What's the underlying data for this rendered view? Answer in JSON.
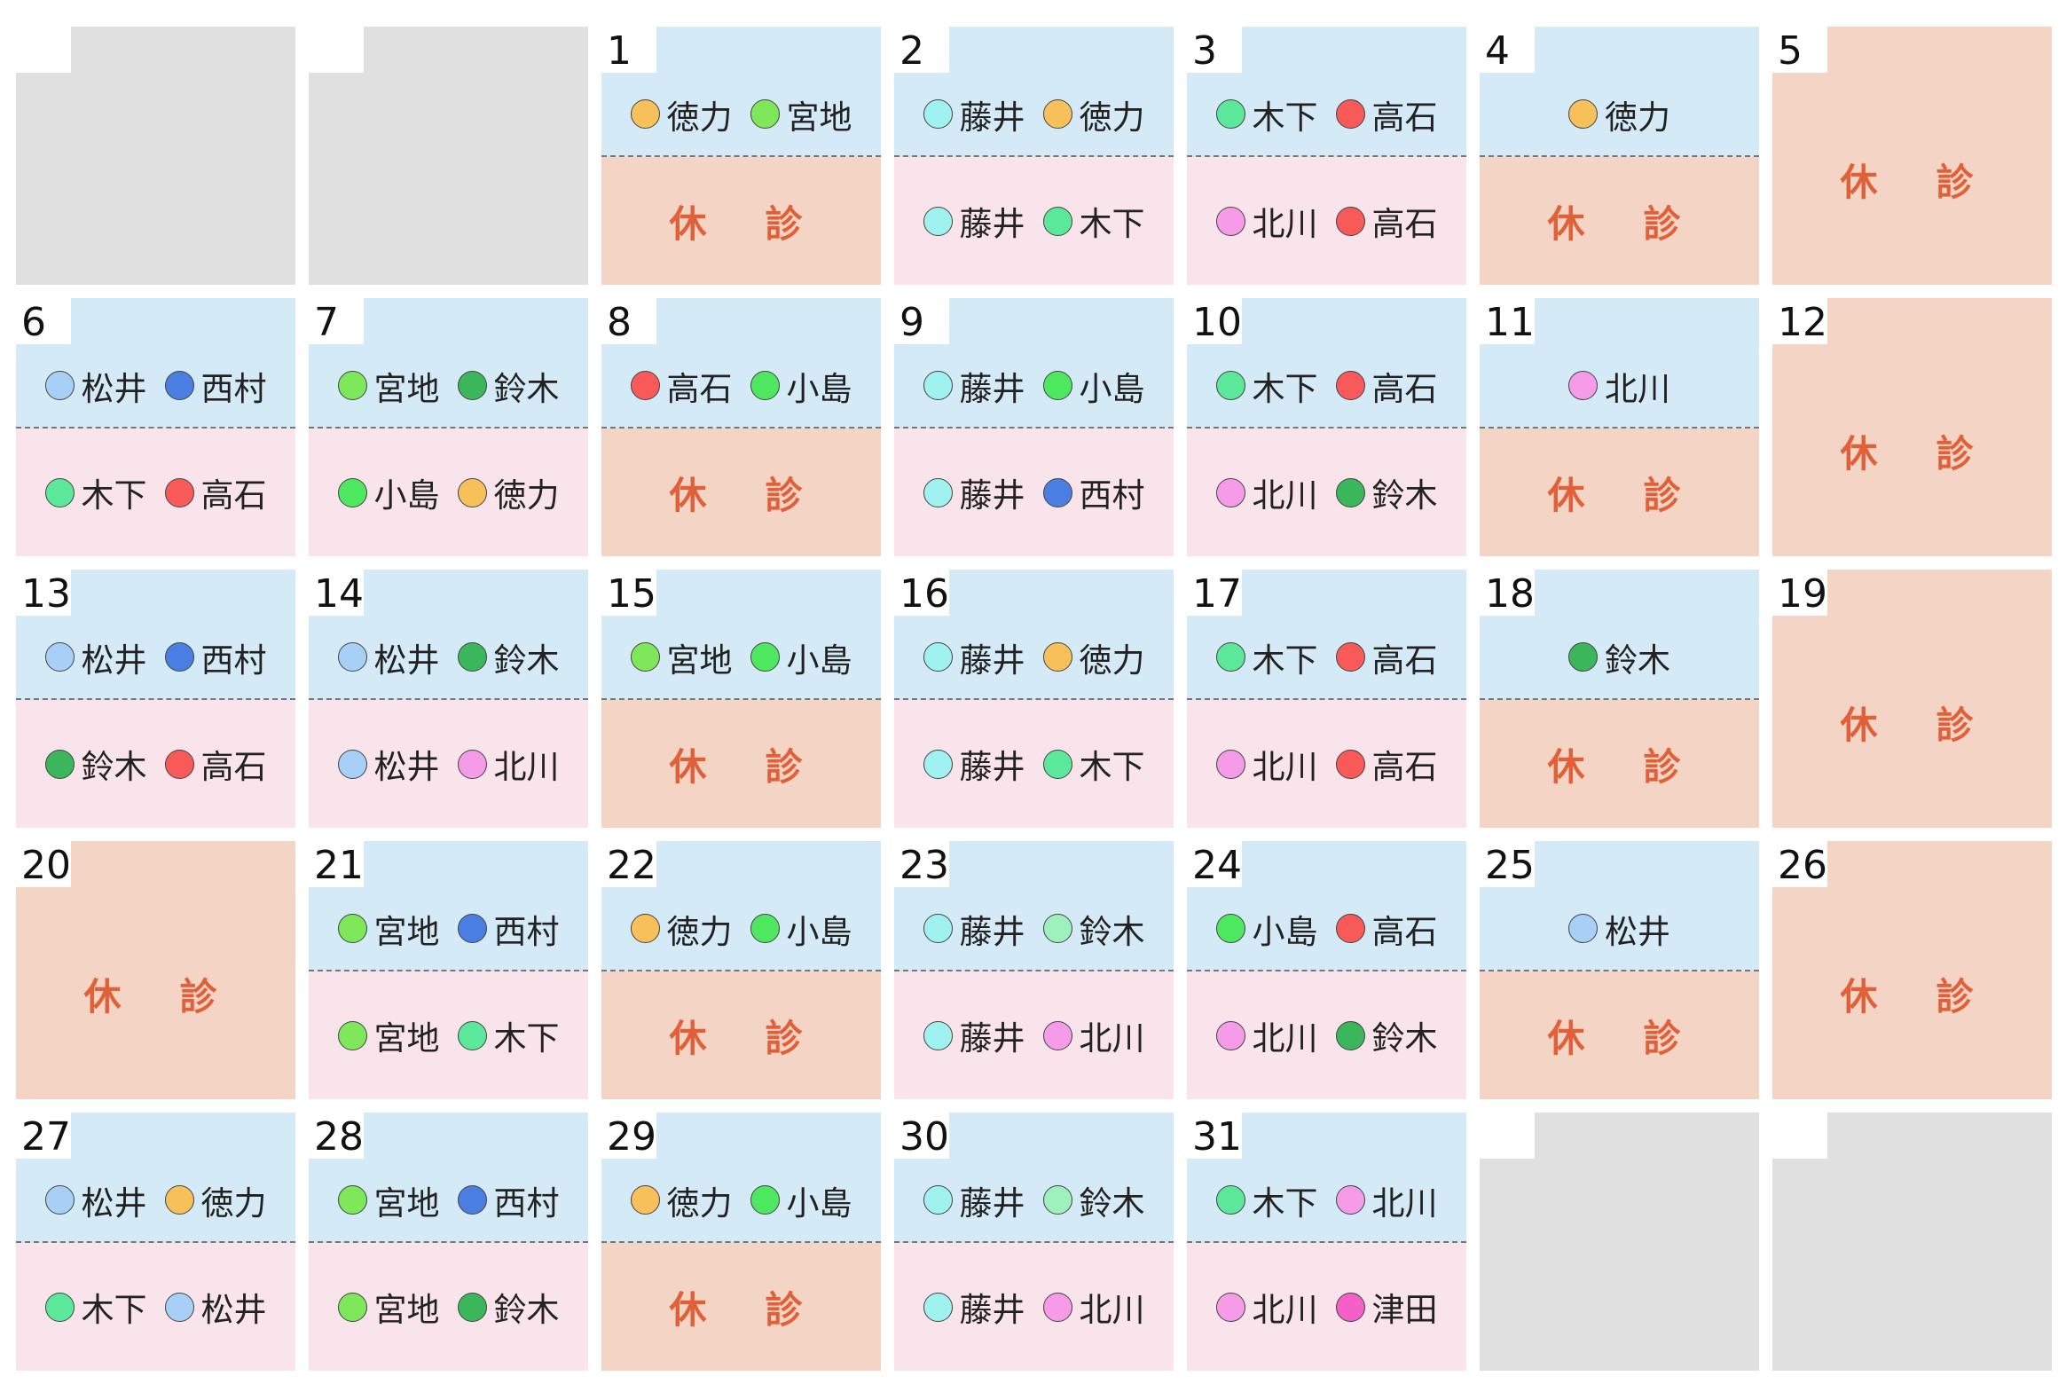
{
  "calendar": {
    "closed_text": "休　診",
    "weeks": [
      [
        null,
        null,
        {
          "day": "1",
          "am": [
            {
              "name": "徳力",
              "color": "#f7c05a"
            },
            {
              "name": "宮地",
              "color": "#7ee85a"
            }
          ],
          "pm_closed": true
        },
        {
          "day": "2",
          "am": [
            {
              "name": "藤井",
              "color": "#a0f2f0"
            },
            {
              "name": "徳力",
              "color": "#f7c05a"
            }
          ],
          "pm": [
            {
              "name": "藤井",
              "color": "#a0f2f0"
            },
            {
              "name": "木下",
              "color": "#5ce89a"
            }
          ]
        },
        {
          "day": "3",
          "am": [
            {
              "name": "木下",
              "color": "#5ce89a"
            },
            {
              "name": "高石",
              "color": "#f85a5a"
            }
          ],
          "pm": [
            {
              "name": "北川",
              "color": "#f59be8"
            },
            {
              "name": "高石",
              "color": "#f85a5a"
            }
          ]
        },
        {
          "day": "4",
          "am": [
            {
              "name": "徳力",
              "color": "#f7c05a"
            }
          ],
          "pm_closed": true
        },
        {
          "day": "5",
          "closed": true
        }
      ],
      [
        {
          "day": "6",
          "am": [
            {
              "name": "松井",
              "color": "#a8cff5"
            },
            {
              "name": "西村",
              "color": "#4a7ee0"
            }
          ],
          "pm": [
            {
              "name": "木下",
              "color": "#5ce89a"
            },
            {
              "name": "高石",
              "color": "#f85a5a"
            }
          ]
        },
        {
          "day": "7",
          "am": [
            {
              "name": "宮地",
              "color": "#7ee85a"
            },
            {
              "name": "鈴木",
              "color": "#3cb65a"
            }
          ],
          "pm": [
            {
              "name": "小島",
              "color": "#4ee860"
            },
            {
              "name": "徳力",
              "color": "#f7c05a"
            }
          ]
        },
        {
          "day": "8",
          "am": [
            {
              "name": "高石",
              "color": "#f85a5a"
            },
            {
              "name": "小島",
              "color": "#4ee860"
            }
          ],
          "pm_closed": true
        },
        {
          "day": "9",
          "am": [
            {
              "name": "藤井",
              "color": "#a0f2f0"
            },
            {
              "name": "小島",
              "color": "#4ee860"
            }
          ],
          "pm": [
            {
              "name": "藤井",
              "color": "#a0f2f0"
            },
            {
              "name": "西村",
              "color": "#4a7ee0"
            }
          ]
        },
        {
          "day": "10",
          "am": [
            {
              "name": "木下",
              "color": "#5ce89a"
            },
            {
              "name": "高石",
              "color": "#f85a5a"
            }
          ],
          "pm": [
            {
              "name": "北川",
              "color": "#f59be8"
            },
            {
              "name": "鈴木",
              "color": "#3cb65a"
            }
          ]
        },
        {
          "day": "11",
          "am": [
            {
              "name": "北川",
              "color": "#f59be8"
            }
          ],
          "pm_closed": true
        },
        {
          "day": "12",
          "closed": true
        }
      ],
      [
        {
          "day": "13",
          "am": [
            {
              "name": "松井",
              "color": "#a8cff5"
            },
            {
              "name": "西村",
              "color": "#4a7ee0"
            }
          ],
          "pm": [
            {
              "name": "鈴木",
              "color": "#3cb65a"
            },
            {
              "name": "高石",
              "color": "#f85a5a"
            }
          ]
        },
        {
          "day": "14",
          "am": [
            {
              "name": "松井",
              "color": "#a8cff5"
            },
            {
              "name": "鈴木",
              "color": "#3cb65a"
            }
          ],
          "pm": [
            {
              "name": "松井",
              "color": "#a8cff5"
            },
            {
              "name": "北川",
              "color": "#f59be8"
            }
          ]
        },
        {
          "day": "15",
          "am": [
            {
              "name": "宮地",
              "color": "#7ee85a"
            },
            {
              "name": "小島",
              "color": "#4ee860"
            }
          ],
          "pm_closed": true
        },
        {
          "day": "16",
          "am": [
            {
              "name": "藤井",
              "color": "#a0f2f0"
            },
            {
              "name": "徳力",
              "color": "#f7c05a"
            }
          ],
          "pm": [
            {
              "name": "藤井",
              "color": "#a0f2f0"
            },
            {
              "name": "木下",
              "color": "#5ce89a"
            }
          ]
        },
        {
          "day": "17",
          "am": [
            {
              "name": "木下",
              "color": "#5ce89a"
            },
            {
              "name": "高石",
              "color": "#f85a5a"
            }
          ],
          "pm": [
            {
              "name": "北川",
              "color": "#f59be8"
            },
            {
              "name": "高石",
              "color": "#f85a5a"
            }
          ]
        },
        {
          "day": "18",
          "am": [
            {
              "name": "鈴木",
              "color": "#3cb65a"
            }
          ],
          "pm_closed": true
        },
        {
          "day": "19",
          "closed": true
        }
      ],
      [
        {
          "day": "20",
          "closed": true
        },
        {
          "day": "21",
          "am": [
            {
              "name": "宮地",
              "color": "#7ee85a"
            },
            {
              "name": "西村",
              "color": "#4a7ee0"
            }
          ],
          "pm": [
            {
              "name": "宮地",
              "color": "#7ee85a"
            },
            {
              "name": "木下",
              "color": "#5ce89a"
            }
          ]
        },
        {
          "day": "22",
          "am": [
            {
              "name": "徳力",
              "color": "#f7c05a"
            },
            {
              "name": "小島",
              "color": "#4ee860"
            }
          ],
          "pm_closed": true
        },
        {
          "day": "23",
          "am": [
            {
              "name": "藤井",
              "color": "#a0f2f0"
            },
            {
              "name": "鈴木",
              "color": "#9ef0bc"
            }
          ],
          "pm": [
            {
              "name": "藤井",
              "color": "#a0f2f0"
            },
            {
              "name": "北川",
              "color": "#f59be8"
            }
          ]
        },
        {
          "day": "24",
          "am": [
            {
              "name": "小島",
              "color": "#4ee860"
            },
            {
              "name": "高石",
              "color": "#f85a5a"
            }
          ],
          "pm": [
            {
              "name": "北川",
              "color": "#f59be8"
            },
            {
              "name": "鈴木",
              "color": "#3cb65a"
            }
          ]
        },
        {
          "day": "25",
          "am": [
            {
              "name": "松井",
              "color": "#a8cff5"
            }
          ],
          "pm_closed": true
        },
        {
          "day": "26",
          "closed": true
        }
      ],
      [
        {
          "day": "27",
          "am": [
            {
              "name": "松井",
              "color": "#a8cff5"
            },
            {
              "name": "徳力",
              "color": "#f7c05a"
            }
          ],
          "pm": [
            {
              "name": "木下",
              "color": "#5ce89a"
            },
            {
              "name": "松井",
              "color": "#a8cff5"
            }
          ]
        },
        {
          "day": "28",
          "am": [
            {
              "name": "宮地",
              "color": "#7ee85a"
            },
            {
              "name": "西村",
              "color": "#4a7ee0"
            }
          ],
          "pm": [
            {
              "name": "宮地",
              "color": "#7ee85a"
            },
            {
              "name": "鈴木",
              "color": "#3cb65a"
            }
          ]
        },
        {
          "day": "29",
          "am": [
            {
              "name": "徳力",
              "color": "#f7c05a"
            },
            {
              "name": "小島",
              "color": "#4ee860"
            }
          ],
          "pm_closed": true
        },
        {
          "day": "30",
          "am": [
            {
              "name": "藤井",
              "color": "#a0f2f0"
            },
            {
              "name": "鈴木",
              "color": "#9ef0bc"
            }
          ],
          "pm": [
            {
              "name": "藤井",
              "color": "#a0f2f0"
            },
            {
              "name": "北川",
              "color": "#f59be8"
            }
          ]
        },
        {
          "day": "31",
          "am": [
            {
              "name": "木下",
              "color": "#5ce89a"
            },
            {
              "name": "北川",
              "color": "#f59be8"
            }
          ],
          "pm": [
            {
              "name": "北川",
              "color": "#f59be8"
            },
            {
              "name": "津田",
              "color": "#f560c8"
            }
          ]
        },
        null,
        null
      ]
    ]
  }
}
